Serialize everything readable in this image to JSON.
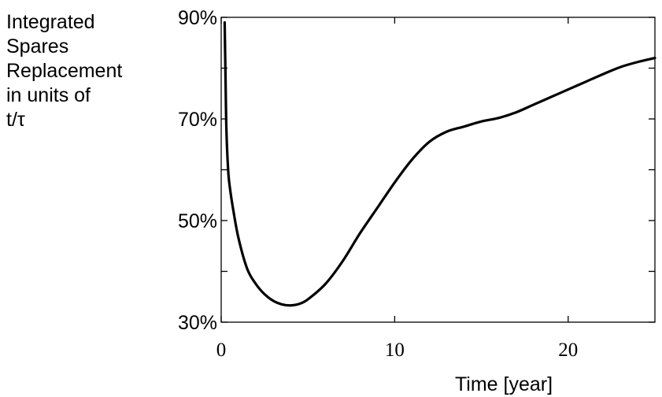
{
  "chart_data": {
    "type": "line",
    "ylabel_lines": [
      "Integrated",
      "Spares",
      "Replacement",
      "in units of",
      "t/τ"
    ],
    "xlabel": "Time [year]",
    "xlim": [
      0,
      25
    ],
    "ylim": [
      30,
      90
    ],
    "x_ticks": [
      0,
      10,
      20
    ],
    "x_tick_labels": [
      "0",
      "10",
      "20"
    ],
    "y_ticks": [
      30,
      50,
      70,
      90
    ],
    "y_tick_labels": [
      "30%",
      "50%",
      "70%",
      "90%"
    ],
    "y_minor_ticks": [
      40,
      60,
      80
    ],
    "grid": false,
    "colors": {
      "line": "#000000",
      "axes": "#000000"
    },
    "series": [
      {
        "x": [
          0.2,
          0.25,
          0.3,
          0.4,
          0.5,
          0.7,
          1.0,
          1.5,
          2.0,
          2.5,
          3.0,
          3.5,
          4.0,
          4.5,
          5.0,
          6.0,
          7.0,
          8.0,
          9.0,
          10.0,
          11.0,
          12.0,
          13.0,
          14.0,
          15.0,
          16.0,
          17.0,
          18.0,
          19.0,
          20.0,
          21.0,
          22.0,
          23.0,
          24.0,
          25.0
        ],
        "y": [
          89,
          78,
          68,
          60,
          56.5,
          52,
          46.5,
          40.5,
          37.5,
          35.5,
          34.2,
          33.5,
          33.3,
          33.6,
          34.5,
          37.5,
          42,
          47.5,
          52.5,
          57.5,
          62,
          65.5,
          67.5,
          68.5,
          69.5,
          70.2,
          71.3,
          72.8,
          74.3,
          75.8,
          77.3,
          78.8,
          80.2,
          81.2,
          82.0
        ]
      }
    ]
  }
}
